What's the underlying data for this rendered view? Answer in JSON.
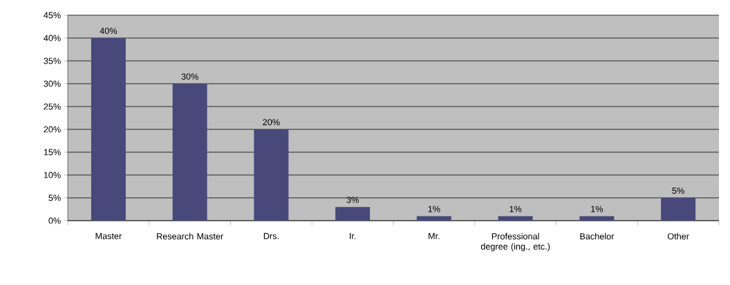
{
  "chart_data": {
    "type": "bar",
    "categories": [
      "Master",
      "Research Master",
      "Drs.",
      "Ir.",
      "Mr.",
      "Professional degree (ing., etc.)",
      "Bachelor",
      "Other"
    ],
    "values": [
      40,
      30,
      20,
      3,
      1,
      1,
      1,
      5
    ],
    "value_labels": [
      "40%",
      "30%",
      "20%",
      "3%",
      "1%",
      "1%",
      "1%",
      "5%"
    ],
    "color": "#48487a",
    "ylim": [
      0,
      45
    ],
    "yticks": [
      {
        "value": 0,
        "label": "0%"
      },
      {
        "value": 5,
        "label": "5%"
      },
      {
        "value": 10,
        "label": "10%"
      },
      {
        "value": 15,
        "label": "15%"
      },
      {
        "value": 20,
        "label": "20%"
      },
      {
        "value": 25,
        "label": "25%"
      },
      {
        "value": 30,
        "label": "30%"
      },
      {
        "value": 35,
        "label": "35%"
      },
      {
        "value": 40,
        "label": "40%"
      },
      {
        "value": 45,
        "label": "45%"
      }
    ],
    "grid": "y"
  }
}
